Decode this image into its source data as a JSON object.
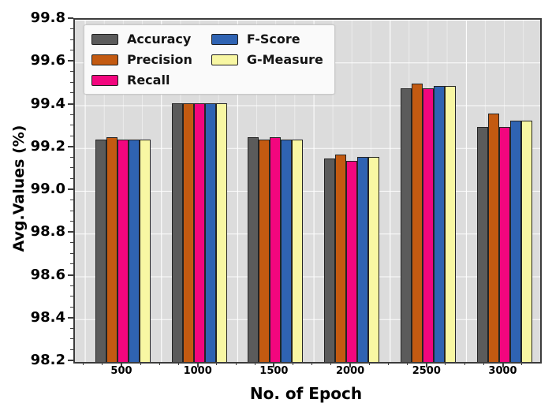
{
  "chart_data": {
    "type": "bar",
    "title": "",
    "xlabel": "No. of Epoch",
    "ylabel": "Avg.Values (%)",
    "categories": [
      "500",
      "1000",
      "1500",
      "2000",
      "2500",
      "3000"
    ],
    "series": [
      {
        "name": "Accuracy",
        "color": "#5b5b5b",
        "values": [
          99.24,
          99.41,
          99.25,
          99.15,
          99.48,
          99.3
        ]
      },
      {
        "name": "Precision",
        "color": "#c35a11",
        "values": [
          99.25,
          99.41,
          99.24,
          99.17,
          99.5,
          99.36
        ]
      },
      {
        "name": "Recall",
        "color": "#f2067e",
        "values": [
          99.24,
          99.41,
          99.25,
          99.14,
          99.48,
          99.3
        ]
      },
      {
        "name": "F-Score",
        "color": "#2f63b2",
        "values": [
          99.24,
          99.41,
          99.24,
          99.16,
          99.49,
          99.33
        ]
      },
      {
        "name": "G-Measure",
        "color": "#f8f7a3",
        "values": [
          99.24,
          99.41,
          99.24,
          99.16,
          99.49,
          99.33
        ]
      }
    ],
    "ylim": [
      98.2,
      99.8
    ],
    "ytick_step": 0.2,
    "yticks": [
      "98.2",
      "98.4",
      "98.6",
      "98.8",
      "99.0",
      "99.2",
      "99.4",
      "99.6",
      "99.8"
    ],
    "grid": true,
    "plot_background": "#dcdcdc",
    "grid_color": "#ffffff",
    "bar_edge_color": "#242424",
    "legend_position": "upper-left",
    "legend_columns": [
      [
        "Accuracy",
        "Precision",
        "Recall"
      ],
      [
        "F-Score",
        "G-Measure"
      ]
    ]
  }
}
